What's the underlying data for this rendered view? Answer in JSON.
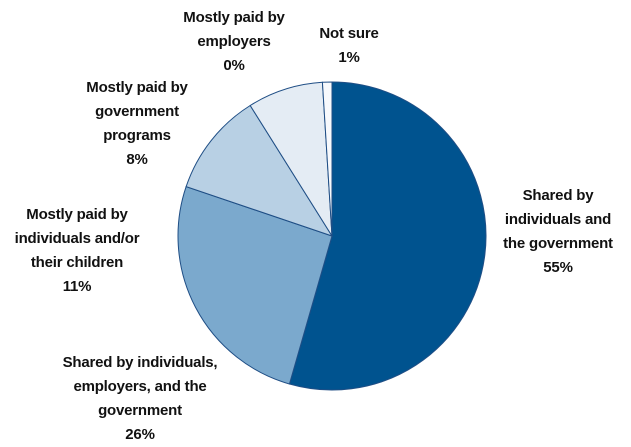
{
  "chart_data": {
    "type": "pie",
    "title": "",
    "start_angle_deg": 0,
    "direction": "clockwise",
    "slices": [
      {
        "label_lines": [
          "Shared by",
          "individuals and",
          "the government"
        ],
        "value_label": "55%",
        "value": 55,
        "color": "#00538f"
      },
      {
        "label_lines": [
          "Shared by individuals,",
          "employers, and the",
          "government"
        ],
        "value_label": "26%",
        "value": 26,
        "color": "#7ba9cd"
      },
      {
        "label_lines": [
          "Mostly paid by",
          "individuals and/or",
          "their children"
        ],
        "value_label": "11%",
        "value": 11,
        "color": "#b8d0e4"
      },
      {
        "label_lines": [
          "Mostly paid by",
          "government",
          "programs"
        ],
        "value_label": "8%",
        "value": 8,
        "color": "#e4ecf4"
      },
      {
        "label_lines": [
          "Not sure"
        ],
        "value_label": "1%",
        "value": 1,
        "color": "#f7f9fc"
      },
      {
        "label_lines": [
          "Mostly paid by",
          "employers"
        ],
        "value_label": "0%",
        "value": 0,
        "color": "#ffffff"
      }
    ]
  }
}
